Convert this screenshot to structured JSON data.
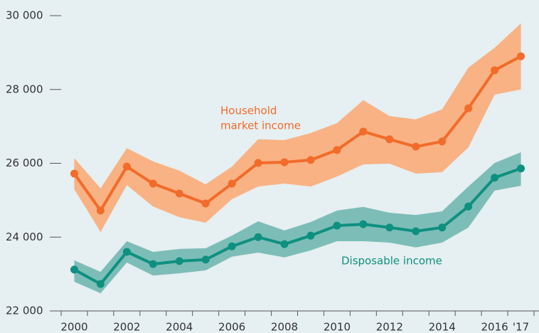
{
  "chart_data": {
    "type": "line",
    "x": [
      2000,
      2001,
      2002,
      2003,
      2004,
      2005,
      2006,
      2007,
      2008,
      2009,
      2010,
      2011,
      2012,
      2013,
      2014,
      2015,
      2016,
      2017
    ],
    "xlim": [
      1999.5,
      2017.5
    ],
    "xticks": [
      2000,
      2002,
      2004,
      2006,
      2008,
      2010,
      2012,
      2014,
      2016,
      {
        "value": 2017,
        "label": "'17"
      }
    ],
    "ylim": [
      22000,
      30000
    ],
    "yticks": [
      {
        "value": 22000,
        "label": "22 000"
      },
      {
        "value": 24000,
        "label": "24 000"
      },
      {
        "value": 26000,
        "label": "26 000"
      },
      {
        "value": 28000,
        "label": "28 000"
      },
      {
        "value": 30000,
        "label": "30 000"
      }
    ],
    "annotations": [
      [
        "Household",
        "market income"
      ],
      [
        "Disposable income"
      ]
    ],
    "series": [
      {
        "color": "#f26b2a",
        "band_color": "#f9b283",
        "values": [
          25720,
          24720,
          25910,
          25450,
          25180,
          24910,
          25450,
          26010,
          26030,
          26090,
          26360,
          26860,
          26650,
          26450,
          26590,
          27490,
          28520,
          28900
        ],
        "upper": [
          26140,
          25320,
          26410,
          26050,
          25800,
          25430,
          25910,
          26650,
          26630,
          26820,
          27090,
          27710,
          27280,
          27190,
          27460,
          28590,
          29130,
          29790
        ],
        "lower": [
          25300,
          24140,
          25410,
          24830,
          24540,
          24390,
          25030,
          25370,
          25450,
          25370,
          25640,
          25970,
          25990,
          25720,
          25760,
          26430,
          27860,
          28000
        ]
      },
      {
        "color": "#0e9080",
        "band_color": "#7dbdb8",
        "values": [
          23120,
          22730,
          23600,
          23270,
          23350,
          23390,
          23750,
          24000,
          23810,
          24040,
          24310,
          24350,
          24260,
          24160,
          24260,
          24830,
          25610,
          25860
        ],
        "upper": [
          23370,
          23060,
          23890,
          23600,
          23680,
          23700,
          24040,
          24430,
          24180,
          24410,
          24720,
          24820,
          24660,
          24600,
          24700,
          25370,
          26010,
          26300
        ],
        "lower": [
          22790,
          22480,
          23310,
          22960,
          23020,
          23100,
          23470,
          23580,
          23450,
          23640,
          23890,
          23890,
          23850,
          23720,
          23850,
          24260,
          25260,
          25390
        ]
      }
    ]
  }
}
